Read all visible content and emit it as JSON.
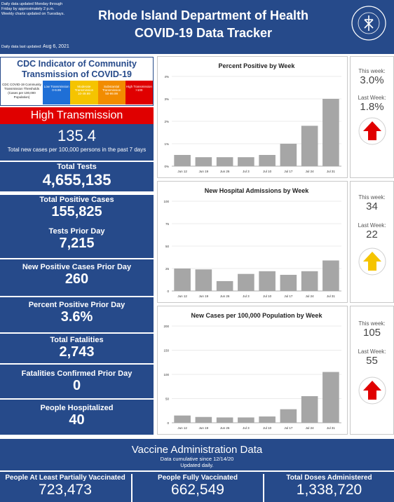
{
  "header": {
    "note1": "Daily data updated Monday through",
    "note2": "Friday by approximately 2 p.m.",
    "note3": "Weekly charts updated on Tuesdays.",
    "updated_label": "Daily data last updated:",
    "updated_date": "Aug 6, 2021",
    "title1": "Rhode Island Department of Health",
    "title2": "COVID-19 Data Tracker",
    "seal_text": "RHODE ISLAND DEPARTMENT OF HEALTH"
  },
  "cdc": {
    "title1": "CDC Indicator of Community",
    "title2": "Transmission of COVID-19",
    "thresholds_label": "CDC COVID-19 Community Transmission Thresholds (Cases per 100,000 Population)",
    "levels": [
      {
        "name": "Low Transmission",
        "range": "0-9.99",
        "color": "#1f6fd6"
      },
      {
        "name": "Moderate Transmission",
        "range": "10-49.99",
        "color": "#f5c400"
      },
      {
        "name": "Substantial Transmission",
        "range": "50-99.99",
        "color": "#f28c00"
      },
      {
        "name": "High Transmission",
        "range": ">100",
        "color": "#e00000"
      }
    ],
    "status": "High Transmission",
    "status_color": "#e00000",
    "rate": "135.4",
    "rate_label": "Total new cases per 100,000 persons in the past 7 days"
  },
  "stats": [
    {
      "label": "Total Tests",
      "value": "4,655,135"
    },
    {
      "label": "Total Positive Cases",
      "value": "155,825"
    },
    {
      "label": "Tests Prior Day",
      "value": "7,215"
    },
    {
      "label": "New Positive Cases Prior Day",
      "value": "260"
    },
    {
      "label": "Percent Positive Prior Day",
      "value": "3.6%"
    },
    {
      "label": "Total Fatalities",
      "value": "2,743"
    },
    {
      "label": "Fatalities Confirmed Prior Day",
      "value": "0"
    },
    {
      "label": "People Hospitalized",
      "value": "40"
    }
  ],
  "side_panels": [
    {
      "this_week_label": "This week:",
      "this_week": "3.0%",
      "last_week_label": "Last Week:",
      "last_week": "1.8%",
      "arrow_color": "#e00000"
    },
    {
      "this_week_label": "This week:",
      "this_week": "34",
      "last_week_label": "Last Week:",
      "last_week": "22",
      "arrow_color": "#f5c400"
    },
    {
      "this_week_label": "This week:",
      "this_week": "105",
      "last_week_label": "Last Week:",
      "last_week": "55",
      "arrow_color": "#e00000"
    }
  ],
  "chart_data": [
    {
      "type": "bar",
      "title": "Percent Positive by Week",
      "categories": [
        "Jun 12",
        "Jun 19",
        "Jun 26",
        "Jul 3",
        "Jul 10",
        "Jul 17",
        "Jul 24",
        "Jul 31"
      ],
      "values": [
        0.5,
        0.4,
        0.4,
        0.4,
        0.5,
        1.0,
        1.8,
        3.0
      ],
      "yticks": [
        "0%",
        "1%",
        "2%",
        "3%",
        "4%"
      ],
      "ylim": [
        0,
        4
      ],
      "color": "#a6a6a6"
    },
    {
      "type": "bar",
      "title": "New Hospital Admissions by Week",
      "categories": [
        "Jun 12",
        "Jun 19",
        "Jun 26",
        "Jul 3",
        "Jul 10",
        "Jul 17",
        "Jul 24",
        "Jul 31"
      ],
      "values": [
        25,
        24,
        11,
        19,
        22,
        18,
        22,
        34
      ],
      "yticks": [
        "0",
        "25",
        "50",
        "75",
        "100"
      ],
      "ylim": [
        0,
        100
      ],
      "color": "#a6a6a6"
    },
    {
      "type": "bar",
      "title": "New Cases per 100,000 Population by Week",
      "categories": [
        "Jun 12",
        "Jun 19",
        "Jun 26",
        "Jul 3",
        "Jul 10",
        "Jul 17",
        "Jul 24",
        "Jul 31"
      ],
      "values": [
        15,
        12,
        11,
        11,
        13,
        28,
        55,
        105
      ],
      "yticks": [
        "0",
        "50",
        "100",
        "150",
        "200"
      ],
      "ylim": [
        0,
        200
      ],
      "color": "#a6a6a6"
    }
  ],
  "vaccine": {
    "title": "Vaccine Administration Data",
    "sub1": "Data cumulative since 12/14/20",
    "sub2": "Updated daily.",
    "items": [
      {
        "label": "People At Least Partially Vaccinated",
        "value": "723,473"
      },
      {
        "label": "People Fully Vaccinated",
        "value": "662,549"
      },
      {
        "label": "Total Doses Administered",
        "value": "1,338,720"
      }
    ]
  }
}
